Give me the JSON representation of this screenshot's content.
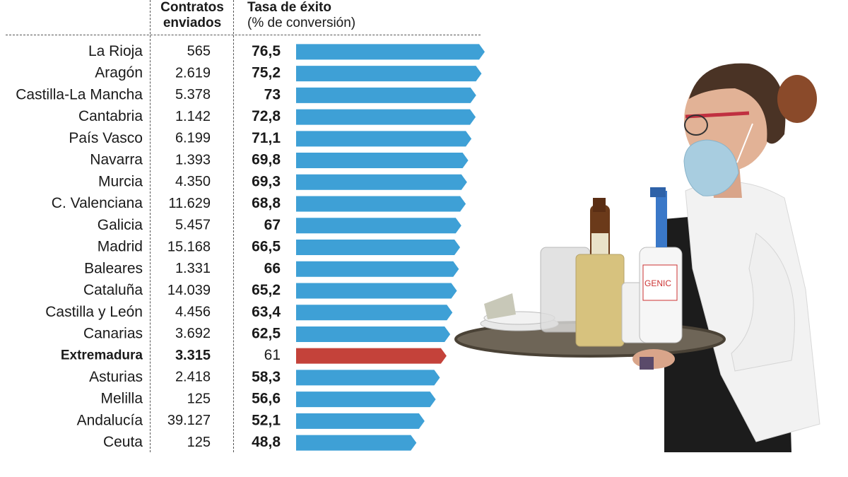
{
  "headers": {
    "contracts_line1": "Contratos",
    "contracts_line2": "enviados",
    "rate_line1": "Tasa de éxito",
    "rate_line2": "(% de conversión)"
  },
  "colors": {
    "bar": "#3ea0d6",
    "highlight_bar": "#c4423a",
    "text": "#1a1a1a"
  },
  "chart_data": {
    "type": "bar",
    "orientation": "horizontal",
    "categories": [
      "La Rioja",
      "Aragón",
      "Castilla-La Mancha",
      "Cantabria",
      "País Vasco",
      "Navarra",
      "Murcia",
      "C. Valenciana",
      "Galicia",
      "Madrid",
      "Baleares",
      "Cataluña",
      "Castilla y León",
      "Canarias",
      "Extremadura",
      "Asturias",
      "Melilla",
      "Andalucía",
      "Ceuta"
    ],
    "contracts_labels": [
      "565",
      "2.619",
      "5.378",
      "1.142",
      "6.199",
      "1.393",
      "4.350",
      "11.629",
      "5.457",
      "15.168",
      "1.331",
      "14.039",
      "4.456",
      "3.692",
      "3.315",
      "2.418",
      "125",
      "39.127",
      "125"
    ],
    "values": [
      76.5,
      75.2,
      73,
      72.8,
      71.1,
      69.8,
      69.3,
      68.8,
      67,
      66.5,
      66,
      65.2,
      63.4,
      62.5,
      61,
      58.3,
      56.6,
      52.1,
      48.8
    ],
    "value_labels": [
      "76,5",
      "75,2",
      "73",
      "72,8",
      "71,1",
      "69,8",
      "69,3",
      "68,8",
      "67",
      "66,5",
      "66",
      "65,2",
      "63,4",
      "62,5",
      "61",
      "58,3",
      "56,6",
      "52,1",
      "48,8"
    ],
    "highlight": "Extremadura",
    "xlim": [
      0,
      76.5
    ]
  },
  "photo": {
    "subject": "waitress-with-tray",
    "bottle_label": "GENIC"
  }
}
